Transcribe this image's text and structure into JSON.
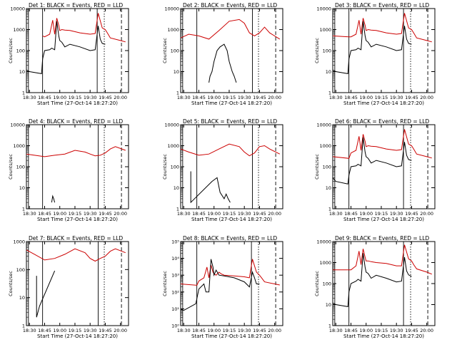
{
  "figure": {
    "start_time_label": "Start Time (27-Oct-14 18:27:20)",
    "y_axis_label": "Counts/sec",
    "x_ticks": [
      "18:30",
      "18:45",
      "19:00",
      "19:15",
      "19:30",
      "19:45",
      "20:00"
    ],
    "colors": {
      "events": "#000000",
      "lld": "#cc0000"
    }
  },
  "chart_data": [
    {
      "type": "line",
      "title": "Det 1: BLACK = Events, RED = LLD",
      "xlabel": "Start Time (27-Oct-14 18:27:20)",
      "ylabel": "Counts/sec",
      "y_scale": "log",
      "ylim": [
        1,
        10000
      ],
      "y_tick_labels": [
        "1",
        "10",
        "100",
        "1000",
        "10000"
      ],
      "x_ticks": [
        "18:30",
        "18:45",
        "19:00",
        "19:15",
        "19:30",
        "19:45",
        "20:00"
      ],
      "markers": {
        "E": "18:29",
        "F": "18:43",
        "S": "19:37",
        "E2": "19:44"
      },
      "series": [
        {
          "x": [
            "18:43",
            "18:45",
            "18:50",
            "18:53",
            "18:55",
            "18:57",
            "18:59",
            "19:00",
            "19:02",
            "19:05",
            "19:10",
            "19:20",
            "19:30",
            "19:35",
            "19:38",
            "19:42",
            "19:45",
            "19:47",
            "19:50",
            "20:00",
            "20:05"
          ],
          "values": [
            500,
            450,
            600,
            2800,
            600,
            3500,
            1600,
            900,
            1000,
            950,
            900,
            700,
            600,
            650,
            6000,
            1200,
            1000,
            700,
            400,
            300,
            260
          ]
        },
        {
          "x": [
            "18:27",
            "18:30",
            "18:42",
            "18:43",
            "18:45",
            "18:50",
            "18:52",
            "18:55",
            "18:57",
            "18:59",
            "19:00",
            "19:02",
            "19:05",
            "19:10",
            "19:20",
            "19:30",
            "19:35",
            "19:38",
            "19:40",
            "19:42",
            "19:45"
          ],
          "values": [
            12,
            10,
            8,
            40,
            100,
            110,
            130,
            110,
            2500,
            500,
            300,
            250,
            150,
            200,
            150,
            100,
            110,
            1500,
            350,
            220,
            200
          ]
        }
      ]
    },
    {
      "type": "line",
      "title": "Det 2: BLACK = Events, RED = LLD",
      "xlabel": "Start Time (27-Oct-14 18:27:20)",
      "ylabel": "Counts/sec",
      "y_scale": "log",
      "ylim": [
        1,
        10000
      ],
      "y_tick_labels": [
        "1",
        "10",
        "100",
        "1000",
        "10000"
      ],
      "x_ticks": [
        "18:30",
        "18:45",
        "19:00",
        "19:15",
        "19:30",
        "19:45",
        "20:00"
      ],
      "markers": {
        "E": "18:29",
        "F": "18:43",
        "S": "19:38",
        "E2": "19:44"
      },
      "series": [
        {
          "x": [
            "18:27",
            "18:35",
            "18:45",
            "18:55",
            "19:05",
            "19:15",
            "19:25",
            "19:30",
            "19:35",
            "19:40",
            "19:45",
            "19:50",
            "19:55",
            "20:05"
          ],
          "values": [
            400,
            600,
            500,
            350,
            900,
            2500,
            3000,
            2000,
            700,
            500,
            700,
            1300,
            700,
            350
          ]
        },
        {
          "x": [
            "18:55",
            "18:56",
            "18:58",
            "19:00",
            "19:03",
            "19:06",
            "19:10",
            "19:13",
            "19:15",
            "19:18",
            "19:20",
            "19:22"
          ],
          "values": [
            3,
            6,
            10,
            30,
            100,
            150,
            200,
            100,
            30,
            10,
            6,
            3
          ]
        }
      ]
    },
    {
      "type": "line",
      "title": "Det 3: BLACK = Events, RED = LLD",
      "xlabel": "Start Time (27-Oct-14 18:27:20)",
      "ylabel": "Counts/sec",
      "y_scale": "log",
      "ylim": [
        1,
        10000
      ],
      "y_tick_labels": [
        "1",
        "10",
        "100",
        "1000",
        "10000"
      ],
      "x_ticks": [
        "18:30",
        "18:45",
        "19:00",
        "19:15",
        "19:30",
        "19:45",
        "20:00"
      ],
      "markers": {
        "E": "18:29",
        "F": "18:43",
        "S": "19:37",
        "E2": "19:44"
      },
      "series": [
        {
          "x": [
            "18:27",
            "18:43",
            "18:45",
            "18:50",
            "18:53",
            "18:55",
            "18:57",
            "18:59",
            "19:00",
            "19:02",
            "19:05",
            "19:10",
            "19:20",
            "19:30",
            "19:35",
            "19:38",
            "19:42",
            "19:45",
            "19:47",
            "19:50",
            "20:00",
            "20:05"
          ],
          "values": [
            500,
            450,
            450,
            600,
            2800,
            600,
            3500,
            1600,
            900,
            1000,
            950,
            900,
            700,
            600,
            650,
            6000,
            1200,
            1000,
            700,
            400,
            300,
            260
          ]
        },
        {
          "x": [
            "18:27",
            "18:30",
            "18:42",
            "18:43",
            "18:45",
            "18:50",
            "18:52",
            "18:55",
            "18:57",
            "18:59",
            "19:00",
            "19:02",
            "19:05",
            "19:10",
            "19:20",
            "19:30",
            "19:35",
            "19:38",
            "19:40",
            "19:42",
            "19:45"
          ],
          "values": [
            12,
            10,
            8,
            40,
            100,
            110,
            130,
            110,
            2500,
            500,
            300,
            250,
            150,
            200,
            150,
            100,
            110,
            1500,
            350,
            220,
            200
          ]
        }
      ]
    },
    {
      "type": "line",
      "title": "Det 4: BLACK = Events, RED = LLD",
      "xlabel": "Start Time (27-Oct-14 18:27:20)",
      "ylabel": "Counts/sec",
      "y_scale": "log",
      "ylim": [
        1,
        10000
      ],
      "y_tick_labels": [
        "1",
        "10",
        "100",
        "1000",
        "10000"
      ],
      "x_ticks": [
        "18:30",
        "18:45",
        "19:00",
        "19:15",
        "19:30",
        "19:45",
        "20:00"
      ],
      "markers": {
        "E": "18:29",
        "F": "18:43",
        "S": "19:38",
        "E2": "19:44"
      },
      "series": [
        {
          "x": [
            "18:27",
            "18:35",
            "18:45",
            "18:55",
            "19:05",
            "19:15",
            "19:25",
            "19:30",
            "19:35",
            "19:40",
            "19:45",
            "19:50",
            "19:55",
            "20:05"
          ],
          "values": [
            400,
            350,
            300,
            350,
            400,
            600,
            500,
            400,
            330,
            350,
            450,
            700,
            900,
            600
          ]
        },
        {
          "x": [
            "18:52",
            "18:53",
            "18:54",
            "18:55"
          ],
          "values": [
            2,
            4,
            3,
            2
          ]
        }
      ]
    },
    {
      "type": "line",
      "title": "Det 5: BLACK = Events, RED = LLD",
      "xlabel": "Start Time (27-Oct-14 18:27:20)",
      "ylabel": "Counts/sec",
      "y_scale": "log",
      "ylim": [
        1,
        10000
      ],
      "y_tick_labels": [
        "1",
        "10",
        "100",
        "1000",
        "10000"
      ],
      "x_ticks": [
        "18:30",
        "18:45",
        "19:00",
        "19:15",
        "19:30",
        "19:45",
        "20:00"
      ],
      "markers": {
        "E": "18:29",
        "F": "18:43",
        "S": "19:38",
        "E2": "19:44"
      },
      "series": [
        {
          "x": [
            "18:27",
            "18:35",
            "18:45",
            "18:55",
            "19:05",
            "19:15",
            "19:25",
            "19:30",
            "19:35",
            "19:40",
            "19:45",
            "19:50",
            "19:55",
            "20:05"
          ],
          "values": [
            700,
            500,
            350,
            400,
            700,
            1200,
            900,
            500,
            330,
            450,
            900,
            1000,
            700,
            400
          ]
        },
        {
          "x": [
            "18:37",
            "18:37",
            "18:58",
            "19:03",
            "19:06",
            "19:10",
            "19:12",
            "19:14",
            "19:16"
          ],
          "values": [
            60,
            2,
            20,
            30,
            6,
            3,
            5,
            3,
            2
          ]
        }
      ]
    },
    {
      "type": "line",
      "title": "Det 6: BLACK = Events, RED = LLD",
      "xlabel": "Start Time (27-Oct-14 18:27:20)",
      "ylabel": "Counts/sec",
      "y_scale": "log",
      "ylim": [
        1,
        10000
      ],
      "y_tick_labels": [
        "1",
        "10",
        "100",
        "1000",
        "10000"
      ],
      "x_ticks": [
        "18:30",
        "18:45",
        "19:00",
        "19:15",
        "19:30",
        "19:45",
        "20:00"
      ],
      "markers": {
        "E": "18:29",
        "F": "18:43",
        "S": "19:37",
        "E2": "19:44"
      },
      "series": [
        {
          "x": [
            "18:27",
            "18:43",
            "18:45",
            "18:50",
            "18:53",
            "18:55",
            "18:57",
            "18:59",
            "19:00",
            "19:02",
            "19:05",
            "19:10",
            "19:20",
            "19:30",
            "19:35",
            "19:38",
            "19:42",
            "19:45",
            "19:47",
            "19:50",
            "20:00",
            "20:05"
          ],
          "values": [
            300,
            250,
            450,
            600,
            2800,
            600,
            3500,
            1600,
            900,
            1000,
            950,
            900,
            700,
            600,
            650,
            6000,
            1200,
            1000,
            700,
            400,
            300,
            260
          ]
        },
        {
          "x": [
            "18:27",
            "18:30",
            "18:42",
            "18:43",
            "18:45",
            "18:50",
            "18:52",
            "18:55",
            "18:57",
            "18:59",
            "19:00",
            "19:02",
            "19:05",
            "19:10",
            "19:20",
            "19:30",
            "19:35",
            "19:38",
            "19:40",
            "19:42",
            "19:45"
          ],
          "values": [
            30,
            20,
            15,
            40,
            100,
            110,
            130,
            110,
            2500,
            500,
            300,
            250,
            150,
            200,
            150,
            100,
            110,
            1500,
            350,
            220,
            200
          ]
        }
      ]
    },
    {
      "type": "line",
      "title": "Det 7: BLACK = Events, RED = LLD",
      "xlabel": "Start Time (27-Oct-14 18:27:20)",
      "ylabel": "Counts/sec",
      "y_scale": "log",
      "ylim": [
        1,
        1000
      ],
      "y_tick_labels": [
        "1",
        "10",
        "100",
        "1000"
      ],
      "x_ticks": [
        "18:30",
        "18:45",
        "19:00",
        "19:15",
        "19:30",
        "19:45",
        "20:00"
      ],
      "markers": {
        "E": "18:29",
        "F": "18:43",
        "S": "19:38",
        "E2": "19:44"
      },
      "series": [
        {
          "x": [
            "18:27",
            "18:35",
            "18:45",
            "18:55",
            "19:05",
            "19:15",
            "19:25",
            "19:30",
            "19:35",
            "19:40",
            "19:45",
            "19:50",
            "19:55",
            "20:05"
          ],
          "values": [
            500,
            350,
            220,
            250,
            350,
            550,
            400,
            250,
            200,
            250,
            300,
            450,
            550,
            400
          ]
        },
        {
          "x": [
            "18:37",
            "18:37",
            "18:40",
            "18:55"
          ],
          "values": [
            60,
            2,
            5,
            90
          ]
        }
      ]
    },
    {
      "type": "line",
      "title": "Det 8: BLACK = Events, RED = LLD",
      "xlabel": "Start Time (27-Oct-14 18:27:20)",
      "ylabel": "Counts/sec",
      "y_scale": "log",
      "ylim": [
        1,
        100000
      ],
      "y_tick_labels": [
        "10⁰",
        "10¹",
        "10²",
        "10³",
        "10⁴",
        "10⁵"
      ],
      "x_ticks": [
        "18:30",
        "18:45",
        "19:00",
        "19:15",
        "19:30",
        "19:45",
        "20:00"
      ],
      "markers": {
        "E": "18:29",
        "F": "18:43",
        "S": "19:37",
        "E2": "19:44"
      },
      "series": [
        {
          "x": [
            "18:27",
            "18:43",
            "18:45",
            "18:50",
            "18:53",
            "18:55",
            "18:57",
            "18:59",
            "19:00",
            "19:02",
            "19:05",
            "19:07",
            "19:10",
            "19:20",
            "19:30",
            "19:35",
            "19:38",
            "19:42",
            "19:45",
            "19:47",
            "19:50",
            "20:00",
            "20:05"
          ],
          "values": [
            300,
            250,
            450,
            700,
            3000,
            700,
            4000,
            1500,
            1200,
            1000,
            1500,
            1200,
            1000,
            900,
            800,
            700,
            9000,
            1500,
            1000,
            700,
            400,
            300,
            260
          ]
        },
        {
          "x": [
            "18:27",
            "18:30",
            "18:42",
            "18:43",
            "18:45",
            "18:50",
            "18:52",
            "18:55",
            "18:57",
            "18:59",
            "19:00",
            "19:02",
            "19:05",
            "19:10",
            "19:20",
            "19:30",
            "19:35",
            "19:38",
            "19:40",
            "19:42",
            "19:45"
          ],
          "values": [
            10,
            8,
            20,
            40,
            150,
            300,
            100,
            100,
            9000,
            3000,
            1000,
            2000,
            1000,
            900,
            700,
            400,
            200,
            1500,
            700,
            300,
            300
          ]
        }
      ]
    },
    {
      "type": "line",
      "title": "Det 9: BLACK = Events, RED = LLD",
      "xlabel": "Start Time (27-Oct-14 18:27:20)",
      "ylabel": "Counts/sec",
      "y_scale": "log",
      "ylim": [
        1,
        10000
      ],
      "y_tick_labels": [
        "1",
        "10",
        "100",
        "1000",
        "10000"
      ],
      "x_ticks": [
        "18:30",
        "18:45",
        "19:00",
        "19:15",
        "19:30",
        "19:45",
        "20:00"
      ],
      "markers": {
        "E": "18:29",
        "F": "18:43",
        "S": "19:37",
        "E2": "19:44"
      },
      "series": [
        {
          "x": [
            "18:27",
            "18:43",
            "18:45",
            "18:50",
            "18:53",
            "18:55",
            "18:57",
            "18:59",
            "19:00",
            "19:02",
            "19:05",
            "19:10",
            "19:20",
            "19:30",
            "19:35",
            "19:38",
            "19:42",
            "19:45",
            "19:47",
            "19:50",
            "20:00",
            "20:05"
          ],
          "values": [
            450,
            450,
            450,
            700,
            3500,
            800,
            4500,
            1800,
            1200,
            1200,
            1100,
            1000,
            900,
            700,
            700,
            7000,
            1500,
            1200,
            800,
            500,
            350,
            280
          ]
        },
        {
          "x": [
            "18:27",
            "18:30",
            "18:42",
            "18:43",
            "18:45",
            "18:50",
            "18:52",
            "18:55",
            "18:57",
            "18:59",
            "19:00",
            "19:02",
            "19:05",
            "19:10",
            "19:20",
            "19:30",
            "19:35",
            "19:38",
            "19:40",
            "19:42",
            "19:45"
          ],
          "values": [
            12,
            10,
            8,
            40,
            100,
            130,
            160,
            130,
            2800,
            600,
            350,
            300,
            180,
            250,
            180,
            120,
            130,
            1800,
            400,
            260,
            220
          ]
        }
      ]
    }
  ]
}
